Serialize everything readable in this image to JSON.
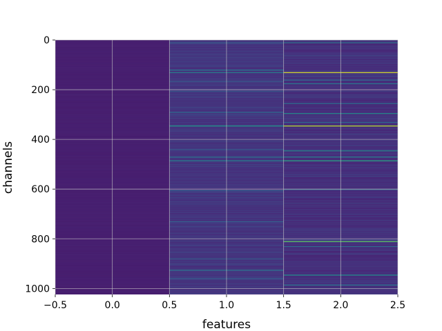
{
  "chart_data": {
    "type": "heatmap",
    "title": "",
    "xlabel": "features",
    "ylabel": "channels",
    "xlim": [
      -0.5,
      2.5
    ],
    "ylim": [
      1024,
      0
    ],
    "y_inverted": true,
    "n_rows": 1024,
    "columns": [
      0,
      1,
      2
    ],
    "colormap": "viridis",
    "grid": true,
    "xticks": [
      -0.5,
      0.0,
      0.5,
      1.0,
      1.5,
      2.0,
      2.5
    ],
    "xtick_labels": [
      "−0.5",
      "0.0",
      "0.5",
      "1.0",
      "1.5",
      "2.0",
      "2.5"
    ],
    "yticks": [
      0,
      200,
      400,
      600,
      800,
      1000
    ],
    "ytick_labels": [
      "0",
      "200",
      "400",
      "600",
      "800",
      "1000"
    ],
    "column_base_level": [
      0.08,
      0.12,
      0.1
    ],
    "highlights": [
      {
        "column": 1,
        "channel": 10,
        "level": 0.3
      },
      {
        "column": 1,
        "channel": 120,
        "level": 0.4
      },
      {
        "column": 1,
        "channel": 130,
        "level": 0.45
      },
      {
        "column": 1,
        "channel": 165,
        "level": 0.3
      },
      {
        "column": 1,
        "channel": 205,
        "level": 0.3
      },
      {
        "column": 1,
        "channel": 290,
        "level": 0.35
      },
      {
        "column": 1,
        "channel": 345,
        "level": 0.55
      },
      {
        "column": 1,
        "channel": 440,
        "level": 0.3
      },
      {
        "column": 1,
        "channel": 470,
        "level": 0.4
      },
      {
        "column": 1,
        "channel": 485,
        "level": 0.45
      },
      {
        "column": 1,
        "channel": 605,
        "level": 0.3
      },
      {
        "column": 1,
        "channel": 730,
        "level": 0.3
      },
      {
        "column": 1,
        "channel": 880,
        "level": 0.3
      },
      {
        "column": 1,
        "channel": 925,
        "level": 0.4
      },
      {
        "column": 1,
        "channel": 960,
        "level": 0.3
      },
      {
        "column": 2,
        "channel": 10,
        "level": 0.4
      },
      {
        "column": 2,
        "channel": 130,
        "level": 0.95
      },
      {
        "column": 2,
        "channel": 160,
        "level": 0.35
      },
      {
        "column": 2,
        "channel": 175,
        "level": 0.4
      },
      {
        "column": 2,
        "channel": 255,
        "level": 0.35
      },
      {
        "column": 2,
        "channel": 295,
        "level": 0.5
      },
      {
        "column": 2,
        "channel": 330,
        "level": 0.35
      },
      {
        "column": 2,
        "channel": 345,
        "level": 0.9
      },
      {
        "column": 2,
        "channel": 445,
        "level": 0.5
      },
      {
        "column": 2,
        "channel": 470,
        "level": 0.45
      },
      {
        "column": 2,
        "channel": 485,
        "level": 0.6
      },
      {
        "column": 2,
        "channel": 600,
        "level": 0.35
      },
      {
        "column": 2,
        "channel": 810,
        "level": 0.75
      },
      {
        "column": 2,
        "channel": 830,
        "level": 0.35
      },
      {
        "column": 2,
        "channel": 945,
        "level": 0.5
      },
      {
        "column": 2,
        "channel": 985,
        "level": 0.4
      }
    ]
  }
}
